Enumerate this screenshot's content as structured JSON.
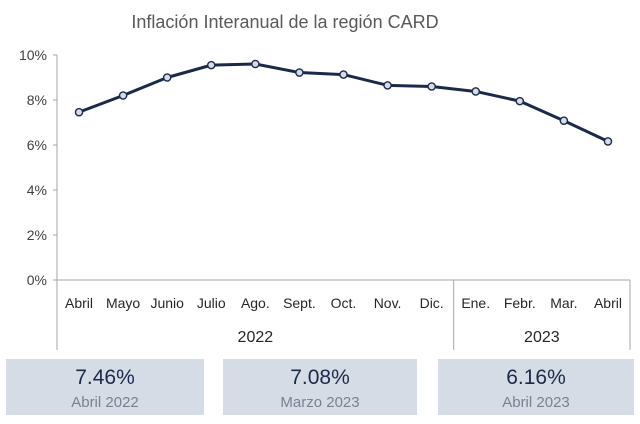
{
  "chart_data": {
    "type": "line",
    "title": "Inflación Interanual de la región CARD",
    "xlabel": "",
    "ylabel": "",
    "categories": [
      "Abril",
      "Mayo",
      "Junio",
      "Julio",
      "Ago.",
      "Sept.",
      "Oct.",
      "Nov.",
      "Dic.",
      "Ene.",
      "Febr.",
      "Mar.",
      "Abril"
    ],
    "year_groups": [
      {
        "label": "2022",
        "from": 0,
        "to": 8
      },
      {
        "label": "2023",
        "from": 9,
        "to": 12
      }
    ],
    "series": [
      {
        "values": [
          7.46,
          8.2,
          9.0,
          9.55,
          9.6,
          9.22,
          9.13,
          8.65,
          8.6,
          8.38,
          7.95,
          7.08,
          6.16
        ]
      }
    ],
    "ylim": [
      0,
      10
    ],
    "yticks": [
      0,
      2,
      4,
      6,
      8,
      10
    ],
    "ytick_labels": [
      "0%",
      "2%",
      "4%",
      "6%",
      "8%",
      "10%"
    ],
    "grid": false,
    "legend": "none",
    "colors": {
      "line": "#1b2a4a",
      "marker_fill": "#d6dce5",
      "axis": "#a6a6a6"
    }
  },
  "kpis": [
    {
      "value": "7.46%",
      "label": "Abril 2022"
    },
    {
      "value": "7.08%",
      "label": "Marzo 2023"
    },
    {
      "value": "6.16%",
      "label": "Abril 2023"
    }
  ]
}
